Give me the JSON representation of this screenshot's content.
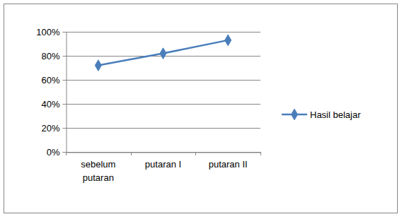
{
  "chart_data": {
    "type": "line",
    "categories": [
      "sebelum putaran",
      "putaran I",
      "putaran II"
    ],
    "series": [
      {
        "name": "Hasil belajar",
        "color": "#4a7ebb",
        "marker": "diamond",
        "values": [
          72,
          82,
          93
        ]
      }
    ],
    "ylim": [
      0,
      100
    ],
    "yticks": [
      {
        "value": 0,
        "label": "0%"
      },
      {
        "value": 20,
        "label": "20%"
      },
      {
        "value": 40,
        "label": "40%"
      },
      {
        "value": 60,
        "label": "60%"
      },
      {
        "value": 80,
        "label": "80%"
      },
      {
        "value": 100,
        "label": "100%"
      }
    ],
    "grid": true,
    "legend": "right"
  }
}
